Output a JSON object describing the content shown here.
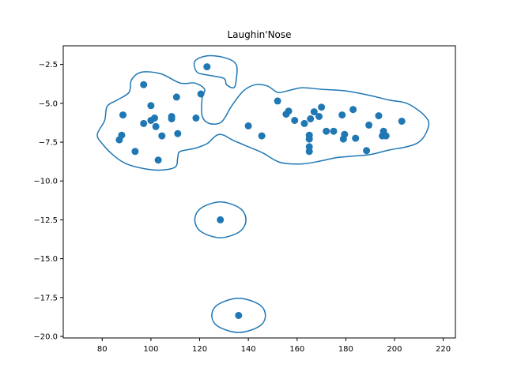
{
  "chart_data": {
    "type": "scatter",
    "title": "Laughin'Nose",
    "xlabel": "",
    "ylabel": "",
    "xlim": [
      64,
      225
    ],
    "ylim": [
      -20.1,
      -1.3
    ],
    "xticks": [
      80,
      100,
      120,
      140,
      160,
      180,
      200,
      220
    ],
    "yticks": [
      -2.5,
      -5.0,
      -7.5,
      -10.0,
      -12.5,
      -15.0,
      -17.5,
      -20.0
    ],
    "xtick_labels": [
      "80",
      "100",
      "120",
      "140",
      "160",
      "180",
      "200",
      "220"
    ],
    "ytick_labels": [
      "−2.5",
      "−5.0",
      "−7.5",
      "−10.0",
      "−12.5",
      "−15.0",
      "−17.5",
      "−20.0"
    ],
    "grid": false,
    "color": "#1f77b4",
    "points": [
      {
        "x": 87,
        "y": -7.35
      },
      {
        "x": 88,
        "y": -7.05
      },
      {
        "x": 88.5,
        "y": -5.75
      },
      {
        "x": 93.5,
        "y": -8.1
      },
      {
        "x": 97,
        "y": -3.8
      },
      {
        "x": 97,
        "y": -6.3
      },
      {
        "x": 100,
        "y": -5.15
      },
      {
        "x": 100,
        "y": -6.1
      },
      {
        "x": 101.5,
        "y": -5.95
      },
      {
        "x": 102,
        "y": -6.5
      },
      {
        "x": 103,
        "y": -8.65
      },
      {
        "x": 104.5,
        "y": -7.1
      },
      {
        "x": 108.5,
        "y": -5.85
      },
      {
        "x": 108.5,
        "y": -6.0
      },
      {
        "x": 110.5,
        "y": -4.6
      },
      {
        "x": 111,
        "y": -6.95
      },
      {
        "x": 118.5,
        "y": -5.95
      },
      {
        "x": 120.5,
        "y": -4.4
      },
      {
        "x": 123,
        "y": -2.65
      },
      {
        "x": 128.5,
        "y": -12.5
      },
      {
        "x": 136,
        "y": -18.65
      },
      {
        "x": 140,
        "y": -6.45
      },
      {
        "x": 145.5,
        "y": -7.1
      },
      {
        "x": 152,
        "y": -4.85
      },
      {
        "x": 155.5,
        "y": -5.7
      },
      {
        "x": 156.5,
        "y": -5.5
      },
      {
        "x": 159,
        "y": -6.1
      },
      {
        "x": 163,
        "y": -6.3
      },
      {
        "x": 165,
        "y": -7.05
      },
      {
        "x": 165,
        "y": -7.3
      },
      {
        "x": 165,
        "y": -7.8
      },
      {
        "x": 165,
        "y": -8.1
      },
      {
        "x": 165.5,
        "y": -6.0
      },
      {
        "x": 167,
        "y": -5.55
      },
      {
        "x": 169,
        "y": -5.85
      },
      {
        "x": 170,
        "y": -5.25
      },
      {
        "x": 172,
        "y": -6.8
      },
      {
        "x": 175,
        "y": -6.8
      },
      {
        "x": 178.5,
        "y": -5.75
      },
      {
        "x": 179,
        "y": -7.3
      },
      {
        "x": 179.5,
        "y": -7.0
      },
      {
        "x": 183,
        "y": -5.4
      },
      {
        "x": 184,
        "y": -7.25
      },
      {
        "x": 188.5,
        "y": -8.05
      },
      {
        "x": 189.5,
        "y": -6.4
      },
      {
        "x": 193.5,
        "y": -5.8
      },
      {
        "x": 195,
        "y": -7.1
      },
      {
        "x": 195.5,
        "y": -6.8
      },
      {
        "x": 196.5,
        "y": -7.1
      },
      {
        "x": 203,
        "y": -6.15
      }
    ],
    "contours": [
      {
        "points": [
          [
            96,
            -3.0
          ],
          [
            104,
            -3.1
          ],
          [
            112,
            -3.7
          ],
          [
            118,
            -3.7
          ],
          [
            122,
            -4.1
          ],
          [
            121,
            -4.7
          ],
          [
            121,
            -5.8
          ],
          [
            124,
            -6.3
          ],
          [
            129,
            -6.2
          ],
          [
            133,
            -5.2
          ],
          [
            138,
            -4.2
          ],
          [
            143,
            -3.8
          ],
          [
            148,
            -3.9
          ],
          [
            152,
            -4.3
          ],
          [
            156,
            -4.2
          ],
          [
            162,
            -4.0
          ],
          [
            170,
            -4.1
          ],
          [
            180,
            -4.2
          ],
          [
            190,
            -4.5
          ],
          [
            198,
            -4.8
          ],
          [
            205,
            -5.0
          ],
          [
            211,
            -5.6
          ],
          [
            214,
            -6.2
          ],
          [
            213,
            -6.9
          ],
          [
            210,
            -7.5
          ],
          [
            205,
            -7.8
          ],
          [
            198,
            -8.0
          ],
          [
            190,
            -8.3
          ],
          [
            183,
            -8.4
          ],
          [
            176,
            -8.5
          ],
          [
            170,
            -8.7
          ],
          [
            162,
            -8.9
          ],
          [
            153,
            -8.8
          ],
          [
            146,
            -8.2
          ],
          [
            140,
            -7.8
          ],
          [
            134,
            -7.4
          ],
          [
            128,
            -7.0
          ],
          [
            123,
            -7.6
          ],
          [
            118,
            -7.9
          ],
          [
            112,
            -8.1
          ],
          [
            111,
            -8.5
          ],
          [
            110,
            -9.1
          ],
          [
            104,
            -9.3
          ],
          [
            97,
            -9.2
          ],
          [
            90,
            -8.9
          ],
          [
            85,
            -8.4
          ],
          [
            80,
            -7.6
          ],
          [
            78,
            -7.0
          ],
          [
            81,
            -6.1
          ],
          [
            82,
            -5.2
          ],
          [
            86,
            -4.8
          ],
          [
            91,
            -4.3
          ],
          [
            92,
            -3.5
          ]
        ]
      },
      {
        "points": [
          [
            118,
            -2.3
          ],
          [
            123,
            -1.95
          ],
          [
            130,
            -2.05
          ],
          [
            135,
            -2.5
          ],
          [
            135,
            -3.5
          ],
          [
            134,
            -4.0
          ],
          [
            131,
            -3.8
          ],
          [
            130,
            -3.4
          ],
          [
            124,
            -3.2
          ],
          [
            119,
            -3.0
          ]
        ]
      },
      {
        "points": [
          [
            118,
            -12.5
          ],
          [
            120.5,
            -11.75
          ],
          [
            128.5,
            -11.35
          ],
          [
            136.5,
            -11.75
          ],
          [
            139,
            -12.5
          ],
          [
            136.5,
            -13.25
          ],
          [
            128.5,
            -13.65
          ],
          [
            120.5,
            -13.25
          ]
        ]
      },
      {
        "points": [
          [
            125,
            -18.65
          ],
          [
            127.5,
            -17.95
          ],
          [
            136,
            -17.55
          ],
          [
            144.5,
            -17.95
          ],
          [
            147,
            -18.65
          ],
          [
            144.5,
            -19.35
          ],
          [
            136,
            -19.75
          ],
          [
            127.5,
            -19.35
          ]
        ]
      }
    ]
  }
}
